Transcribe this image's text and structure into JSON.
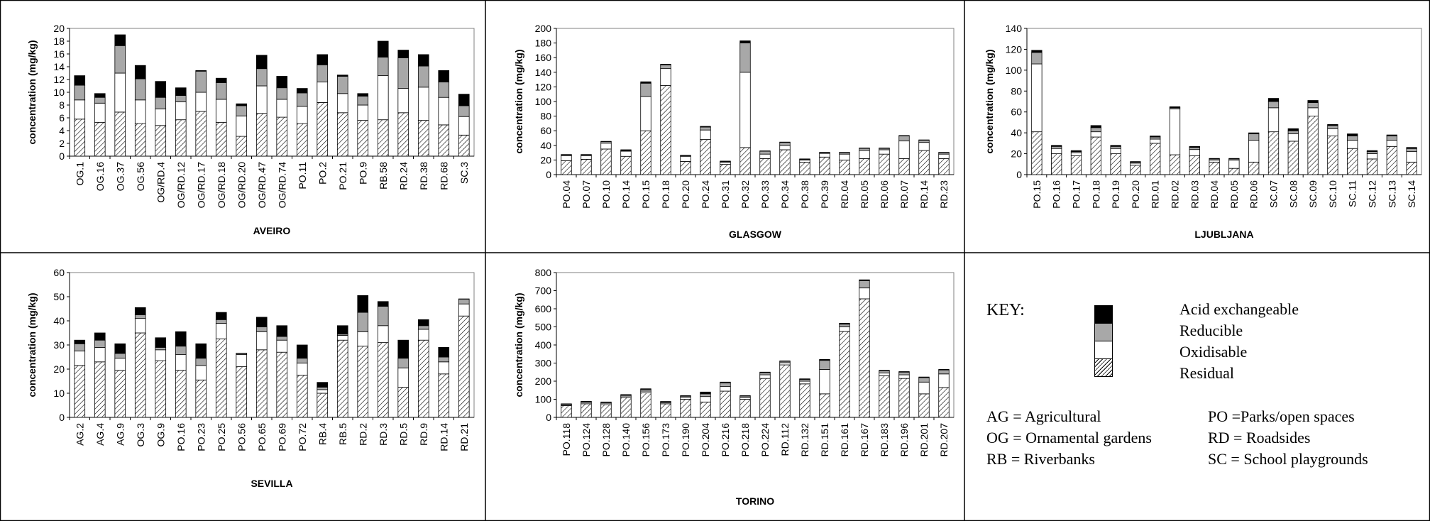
{
  "colors": {
    "acid": "#000000",
    "reducible": "#a8a8a8",
    "oxidisable": "#ffffff",
    "residual": "hatch"
  },
  "chart_data": [
    {
      "type": "bar",
      "title": "AVEIRO",
      "ylabel": "concentration (mg/kg)",
      "xlabel": "",
      "ylim": [
        0,
        20
      ],
      "yticks": [
        0,
        2,
        4,
        6,
        8,
        10,
        12,
        14,
        16,
        18,
        20
      ],
      "stacked": true,
      "categories": [
        "OG.1",
        "OG.16",
        "OG.37",
        "OG.56",
        "OG/RD.4",
        "OG/RD.12",
        "OG/RD.17",
        "OG/RD.18",
        "OG/RD.20",
        "OG/RD.47",
        "OG/RD.74",
        "PO.11",
        "PO.2",
        "PO.21",
        "PO.9",
        "RB.58",
        "RD.24",
        "RD.38",
        "RD.68",
        "SC.3"
      ],
      "series": [
        {
          "name": "Residual",
          "values": [
            5.8,
            5.3,
            6.9,
            5.1,
            4.8,
            5.7,
            7.0,
            5.3,
            3.1,
            6.7,
            6.1,
            5.1,
            8.4,
            6.8,
            5.6,
            5.7,
            6.8,
            5.6,
            4.9,
            3.3
          ]
        },
        {
          "name": "Oxidisable",
          "values": [
            3.0,
            3.0,
            6.1,
            3.7,
            2.6,
            2.8,
            3.0,
            3.6,
            3.2,
            4.3,
            2.8,
            2.7,
            3.2,
            3.0,
            2.4,
            6.9,
            3.8,
            5.2,
            4.3,
            2.9
          ]
        },
        {
          "name": "Reducible",
          "values": [
            2.3,
            0.9,
            4.3,
            3.3,
            1.8,
            1.0,
            3.3,
            2.6,
            1.6,
            2.7,
            1.8,
            2.1,
            2.7,
            2.7,
            1.4,
            2.9,
            4.8,
            3.3,
            2.4,
            1.7
          ]
        },
        {
          "name": "Acid exchangeable",
          "values": [
            1.5,
            0.6,
            1.7,
            2.1,
            2.5,
            1.2,
            0.1,
            0.7,
            0.3,
            2.1,
            1.8,
            0.7,
            1.6,
            0.2,
            0.4,
            2.5,
            1.2,
            1.8,
            1.8,
            1.8
          ]
        }
      ]
    },
    {
      "type": "bar",
      "title": "GLASGOW",
      "ylabel": "concentration (mg/kg)",
      "xlabel": "",
      "ylim": [
        0,
        200
      ],
      "yticks": [
        0,
        20,
        40,
        60,
        80,
        100,
        120,
        140,
        160,
        180,
        200
      ],
      "stacked": true,
      "categories": [
        "PO.04",
        "PO.07",
        "PO.10",
        "PO.14",
        "PO.15",
        "PO.18",
        "PO.20",
        "PO.24",
        "PO.31",
        "PO.32",
        "PO.33",
        "PO.34",
        "PO.38",
        "PO.39",
        "RD.04",
        "RD.05",
        "RD.06",
        "RD.07",
        "RD.14",
        "RD.23"
      ],
      "series": [
        {
          "name": "Residual",
          "values": [
            19,
            21,
            35,
            25,
            60,
            122,
            18,
            48,
            14,
            37,
            22,
            34,
            17,
            24,
            20,
            22,
            28,
            22,
            33,
            22
          ]
        },
        {
          "name": "Oxidisable",
          "values": [
            7,
            5,
            8,
            7,
            47,
            23,
            7,
            13,
            3,
            103,
            6,
            6,
            3,
            5,
            8,
            11,
            6,
            24,
            11,
            6
          ]
        },
        {
          "name": "Reducible",
          "values": [
            1,
            1,
            2,
            1,
            18,
            5,
            1,
            4,
            1,
            40,
            4,
            4,
            1,
            1,
            2,
            3,
            2,
            7,
            3,
            2
          ]
        },
        {
          "name": "Acid exchangeable",
          "values": [
            0.5,
            0.5,
            0.5,
            1,
            2,
            1,
            0.5,
            1,
            0.5,
            3,
            0.5,
            0.5,
            0.5,
            0.5,
            0.5,
            0.5,
            0.5,
            0.5,
            0.5,
            0.5
          ]
        }
      ]
    },
    {
      "type": "bar",
      "title": "LJUBLJANA",
      "ylabel": "concentration (mg/kg)",
      "xlabel": "",
      "ylim": [
        0,
        140
      ],
      "yticks": [
        0,
        20,
        40,
        60,
        80,
        100,
        120,
        140
      ],
      "stacked": true,
      "categories": [
        "PO.15",
        "PO.16",
        "PO.17",
        "PO.18",
        "PO.19",
        "PO.20",
        "RD.01",
        "RD.02",
        "RD.03",
        "RD.04",
        "RD.05",
        "RD.06",
        "SC.07",
        "SC.08",
        "SC.09",
        "SC.10",
        "SC.11",
        "SC.12",
        "SC.13",
        "SC.14"
      ],
      "series": [
        {
          "name": "Residual",
          "values": [
            41,
            20,
            18,
            36,
            20,
            9,
            30,
            19,
            18,
            12,
            6,
            12,
            41,
            32,
            56,
            37,
            25,
            15,
            27,
            12
          ]
        },
        {
          "name": "Oxidisable",
          "values": [
            65,
            5,
            3,
            5,
            5,
            2,
            4,
            44,
            6,
            2,
            8,
            21,
            23,
            7,
            8,
            7,
            8,
            5,
            6,
            10
          ]
        },
        {
          "name": "Reducible",
          "values": [
            11,
            2,
            1,
            4,
            2,
            1,
            2,
            1,
            2,
            1,
            1,
            6,
            6,
            3,
            5,
            3,
            4,
            2,
            4,
            3
          ]
        },
        {
          "name": "Acid exchangeable",
          "values": [
            2,
            1,
            1,
            2,
            1,
            0.5,
            1,
            1,
            1,
            0.5,
            0.5,
            1,
            3,
            2,
            2,
            1,
            2,
            1,
            1,
            1
          ]
        }
      ]
    },
    {
      "type": "bar",
      "title": "SEVILLA",
      "ylabel": "concentration (mg/kg)",
      "xlabel": "",
      "ylim": [
        0,
        60
      ],
      "yticks": [
        0,
        10,
        20,
        30,
        40,
        50,
        60
      ],
      "stacked": true,
      "categories": [
        "AG.2",
        "AG.4",
        "AG.9",
        "OG.3",
        "OG.9",
        "PO.16",
        "PO.23",
        "PO.25",
        "PO.56",
        "PO.65",
        "PO.69",
        "PO.72",
        "RB.4",
        "RB.5",
        "RD.2",
        "RD.3",
        "RD.5",
        "RD.9",
        "RD.14",
        "RD.21"
      ],
      "series": [
        {
          "name": "Residual",
          "values": [
            21.5,
            23,
            19.5,
            35,
            23.5,
            19.5,
            15.5,
            32.5,
            21,
            28,
            27,
            17.5,
            10,
            32,
            29.5,
            31,
            12.5,
            32,
            18,
            42
          ]
        },
        {
          "name": "Oxidisable",
          "values": [
            6,
            6,
            5,
            6,
            4.5,
            6.5,
            6,
            6.5,
            5,
            7.5,
            5,
            5,
            1.5,
            2,
            6,
            7,
            8,
            4.5,
            5,
            5
          ]
        },
        {
          "name": "Reducible",
          "values": [
            3,
            3,
            2,
            1.5,
            1,
            3.5,
            3,
            1.5,
            0.5,
            2,
            1.5,
            2,
            1,
            0.5,
            8,
            8,
            4,
            1.5,
            2,
            2
          ]
        },
        {
          "name": "Acid exchangeable",
          "values": [
            1.5,
            3,
            4,
            3,
            4,
            6,
            6,
            3,
            0.1,
            4,
            4.5,
            5.5,
            2,
            3.5,
            7,
            2,
            7.5,
            2.5,
            4,
            0.1
          ]
        }
      ]
    },
    {
      "type": "bar",
      "title": "TORINO",
      "ylabel": "concentration (mg/kg)",
      "xlabel": "",
      "ylim": [
        0,
        800
      ],
      "yticks": [
        0,
        100,
        200,
        300,
        400,
        500,
        600,
        700,
        800
      ],
      "stacked": true,
      "categories": [
        "PO.118",
        "PO.124",
        "PO.128",
        "PO.140",
        "PO.156",
        "PO.173",
        "PO.190",
        "PO.204",
        "PO.216",
        "PO.218",
        "PO.224",
        "RD.112",
        "RD.132",
        "RD.151",
        "RD.161",
        "RD.167",
        "RD.183",
        "RD.196",
        "RD.201",
        "RD.207"
      ],
      "series": [
        {
          "name": "Residual",
          "values": [
            65,
            75,
            70,
            110,
            135,
            75,
            100,
            85,
            145,
            100,
            215,
            290,
            185,
            130,
            475,
            655,
            230,
            215,
            130,
            165
          ]
        },
        {
          "name": "Oxidisable",
          "values": [
            5,
            7,
            8,
            8,
            10,
            6,
            12,
            30,
            25,
            10,
            20,
            12,
            15,
            135,
            25,
            60,
            15,
            20,
            65,
            75
          ]
        },
        {
          "name": "Reducible",
          "values": [
            4,
            5,
            5,
            6,
            10,
            5,
            5,
            15,
            20,
            8,
            12,
            8,
            10,
            50,
            15,
            40,
            12,
            15,
            25,
            22
          ]
        },
        {
          "name": "Acid exchangeable",
          "values": [
            1,
            2,
            2,
            2,
            3,
            2,
            3,
            10,
            5,
            2,
            3,
            2,
            3,
            5,
            5,
            5,
            3,
            3,
            3,
            3
          ]
        }
      ]
    }
  ],
  "key": {
    "title": "KEY:",
    "legend": [
      "Acid exchangeable",
      "Reducible",
      "Oxidisable",
      "Residual"
    ],
    "abbr_left": [
      "AG = Agricultural",
      "OG = Ornamental gardens",
      "RB = Riverbanks"
    ],
    "abbr_right": [
      "PO =Parks/open spaces",
      "RD = Roadsides",
      "SC = School playgrounds"
    ]
  }
}
